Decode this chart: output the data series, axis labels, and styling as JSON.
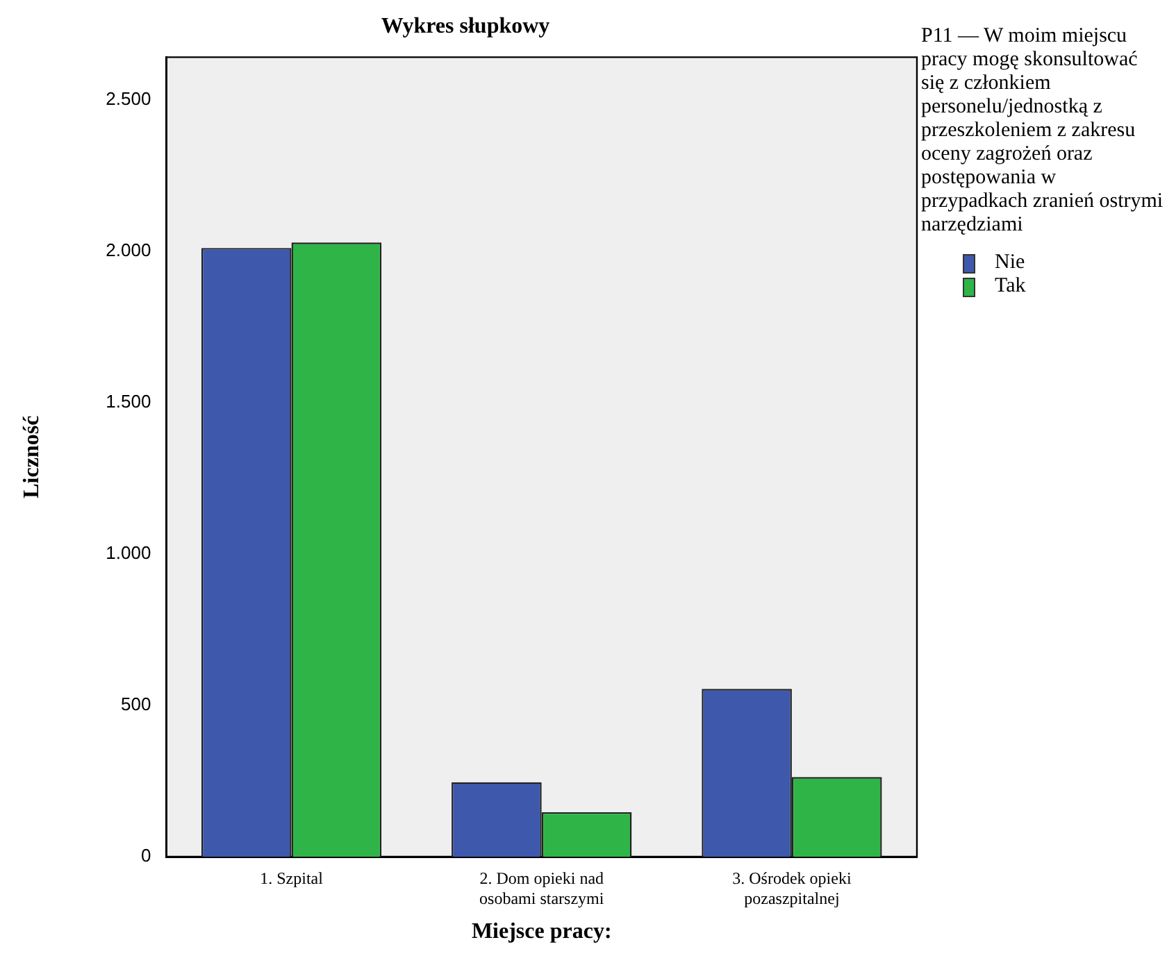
{
  "chart_data": {
    "type": "bar",
    "title": "Wykres słupkowy",
    "xlabel": "Miejsce pracy:",
    "ylabel": "Liczność",
    "legend_title": "P11 — W moim miejscu pracy mogę skonsultować się z członkiem personelu/jednostką z przeszkoleniem z zakresu oceny zagrożeń oraz postępowania w przypadkach zranień ostrymi narzędziami",
    "categories": [
      "1. Szpital",
      "2. Dom opieki nad osobami starszymi",
      "3. Ośrodek opieki pozaszpitalnej"
    ],
    "series": [
      {
        "name": "Nie",
        "color": "#3e58ac",
        "values": [
          2010,
          246,
          554
        ]
      },
      {
        "name": "Tak",
        "color": "#2fb547",
        "values": [
          2028,
          147,
          263
        ]
      }
    ],
    "ylim": [
      0,
      2640
    ],
    "yticks": [
      {
        "value": 0,
        "label": "0"
      },
      {
        "value": 500,
        "label": "500"
      },
      {
        "value": 1000,
        "label": "1.000"
      },
      {
        "value": 1500,
        "label": "1.500"
      },
      {
        "value": 2000,
        "label": "2.000"
      },
      {
        "value": 2500,
        "label": "2.500"
      }
    ],
    "grid": false,
    "legend": "right"
  }
}
